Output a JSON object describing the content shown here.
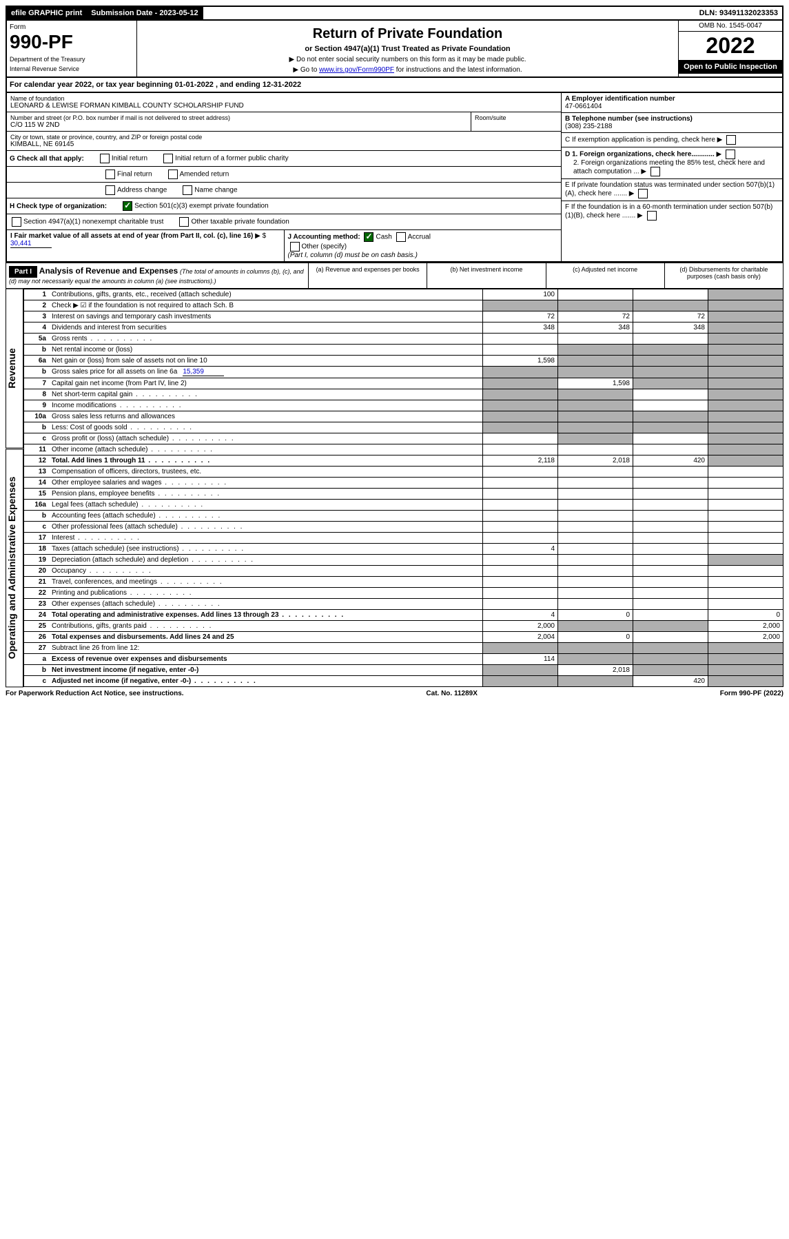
{
  "topbar": {
    "efile": "efile GRAPHIC print",
    "submission_label": "Submission Date - 2023-05-12",
    "dln_label": "DLN: 93491132023353"
  },
  "header": {
    "form_word": "Form",
    "form_number": "990-PF",
    "dept1": "Department of the Treasury",
    "dept2": "Internal Revenue Service",
    "title": "Return of Private Foundation",
    "subtitle": "or Section 4947(a)(1) Trust Treated as Private Foundation",
    "instr1": "▶ Do not enter social security numbers on this form as it may be made public.",
    "instr2_pre": "▶ Go to ",
    "instr2_link": "www.irs.gov/Form990PF",
    "instr2_post": " for instructions and the latest information.",
    "omb": "OMB No. 1545-0047",
    "year": "2022",
    "open": "Open to Public Inspection"
  },
  "calyear": {
    "text_pre": "For calendar year 2022, or tax year beginning ",
    "begin": "01-01-2022",
    "text_mid": " , and ending ",
    "end": "12-31-2022"
  },
  "info": {
    "name_lbl": "Name of foundation",
    "name_val": "LEONARD & LEWISE FORMAN KIMBALL COUNTY SCHOLARSHIP FUND",
    "addr_lbl": "Number and street (or P.O. box number if mail is not delivered to street address)",
    "addr_val": "C/O 115 W 2ND",
    "room_lbl": "Room/suite",
    "city_lbl": "City or town, state or province, country, and ZIP or foreign postal code",
    "city_val": "KIMBALL, NE  69145",
    "ein_lbl": "A Employer identification number",
    "ein_val": "47-0661404",
    "tel_lbl": "B Telephone number (see instructions)",
    "tel_val": "(308) 235-2188",
    "c_lbl": "C If exemption application is pending, check here",
    "d1_lbl": "D 1. Foreign organizations, check here............",
    "d2_lbl": "2. Foreign organizations meeting the 85% test, check here and attach computation ...",
    "e_lbl": "E  If private foundation status was terminated under section 507(b)(1)(A), check here .......",
    "f_lbl": "F  If the foundation is in a 60-month termination under section 507(b)(1)(B), check here .......",
    "g_lbl": "G Check all that apply:",
    "g_initial": "Initial return",
    "g_initial_former": "Initial return of a former public charity",
    "g_final": "Final return",
    "g_amended": "Amended return",
    "g_address": "Address change",
    "g_name": "Name change",
    "h_lbl": "H Check type of organization:",
    "h_501c3": "Section 501(c)(3) exempt private foundation",
    "h_4947": "Section 4947(a)(1) nonexempt charitable trust",
    "h_other_tax": "Other taxable private foundation",
    "i_lbl": "I Fair market value of all assets at end of year (from Part II, col. (c), line 16)",
    "i_val": "30,441",
    "j_lbl": "J Accounting method:",
    "j_cash": "Cash",
    "j_accrual": "Accrual",
    "j_other": "Other (specify)",
    "j_note": "(Part I, column (d) must be on cash basis.)"
  },
  "part1": {
    "part_label": "Part I",
    "title": "Analysis of Revenue and Expenses",
    "subtitle": "(The total of amounts in columns (b), (c), and (d) may not necessarily equal the amounts in column (a) (see instructions).)",
    "col_a": "(a) Revenue and expenses per books",
    "col_b": "(b) Net investment income",
    "col_c": "(c) Adjusted net income",
    "col_d": "(d) Disbursements for charitable purposes (cash basis only)"
  },
  "sidelabels": {
    "revenue": "Revenue",
    "expenses": "Operating and Administrative Expenses"
  },
  "rows": [
    {
      "n": "1",
      "label": "Contributions, gifts, grants, etc., received (attach schedule)",
      "a": "100",
      "b": "",
      "c": "",
      "d": "",
      "d_shaded": true
    },
    {
      "n": "2",
      "label": "Check ▶ ☑ if the foundation is not required to attach Sch. B",
      "a": "",
      "b": "",
      "c": "",
      "d": "",
      "all_shaded": true,
      "bold_not": true
    },
    {
      "n": "3",
      "label": "Interest on savings and temporary cash investments",
      "a": "72",
      "b": "72",
      "c": "72",
      "d": "",
      "d_shaded": true
    },
    {
      "n": "4",
      "label": "Dividends and interest from securities",
      "a": "348",
      "b": "348",
      "c": "348",
      "d": "",
      "d_shaded": true
    },
    {
      "n": "5a",
      "label": "Gross rents",
      "a": "",
      "b": "",
      "c": "",
      "d": "",
      "d_shaded": true,
      "dots": true
    },
    {
      "n": "b",
      "label": "Net rental income or (loss)",
      "a": "",
      "b": "",
      "c": "",
      "d": "",
      "bcd_shaded": true
    },
    {
      "n": "6a",
      "label": "Net gain or (loss) from sale of assets not on line 10",
      "a": "1,598",
      "b": "",
      "c": "",
      "d": "",
      "bcd_shaded": true
    },
    {
      "n": "b",
      "label": "Gross sales price for all assets on line 6a",
      "inline_val": "15,359",
      "a": "",
      "b": "",
      "c": "",
      "d": "",
      "all_shaded": true
    },
    {
      "n": "7",
      "label": "Capital gain net income (from Part IV, line 2)",
      "a": "",
      "b": "1,598",
      "c": "",
      "d": "",
      "a_shaded": true,
      "cd_shaded": true
    },
    {
      "n": "8",
      "label": "Net short-term capital gain",
      "a": "",
      "b": "",
      "c": "",
      "d": "",
      "ab_shaded": true,
      "d_shaded": true,
      "dots": true
    },
    {
      "n": "9",
      "label": "Income modifications",
      "a": "",
      "b": "",
      "c": "",
      "d": "",
      "ab_shaded": true,
      "d_shaded": true,
      "dots": true
    },
    {
      "n": "10a",
      "label": "Gross sales less returns and allowances",
      "a": "",
      "b": "",
      "c": "",
      "d": "",
      "all_shaded": true
    },
    {
      "n": "b",
      "label": "Less: Cost of goods sold",
      "a": "",
      "b": "",
      "c": "",
      "d": "",
      "all_shaded": true,
      "dots": true
    },
    {
      "n": "c",
      "label": "Gross profit or (loss) (attach schedule)",
      "a": "",
      "b": "",
      "c": "",
      "d": "",
      "b_shaded": true,
      "d_shaded": true,
      "dots": true
    },
    {
      "n": "11",
      "label": "Other income (attach schedule)",
      "a": "",
      "b": "",
      "c": "",
      "d": "",
      "d_shaded": true,
      "dots": true
    },
    {
      "n": "12",
      "label": "Total. Add lines 1 through 11",
      "a": "2,118",
      "b": "2,018",
      "c": "420",
      "d": "",
      "d_shaded": true,
      "bold": true,
      "dots": true
    },
    {
      "n": "13",
      "label": "Compensation of officers, directors, trustees, etc.",
      "a": "",
      "b": "",
      "c": "",
      "d": ""
    },
    {
      "n": "14",
      "label": "Other employee salaries and wages",
      "a": "",
      "b": "",
      "c": "",
      "d": "",
      "dots": true
    },
    {
      "n": "15",
      "label": "Pension plans, employee benefits",
      "a": "",
      "b": "",
      "c": "",
      "d": "",
      "dots": true
    },
    {
      "n": "16a",
      "label": "Legal fees (attach schedule)",
      "a": "",
      "b": "",
      "c": "",
      "d": "",
      "dots": true
    },
    {
      "n": "b",
      "label": "Accounting fees (attach schedule)",
      "a": "",
      "b": "",
      "c": "",
      "d": "",
      "dots": true
    },
    {
      "n": "c",
      "label": "Other professional fees (attach schedule)",
      "a": "",
      "b": "",
      "c": "",
      "d": "",
      "dots": true
    },
    {
      "n": "17",
      "label": "Interest",
      "a": "",
      "b": "",
      "c": "",
      "d": "",
      "dots": true
    },
    {
      "n": "18",
      "label": "Taxes (attach schedule) (see instructions)",
      "a": "4",
      "b": "",
      "c": "",
      "d": "",
      "dots": true
    },
    {
      "n": "19",
      "label": "Depreciation (attach schedule) and depletion",
      "a": "",
      "b": "",
      "c": "",
      "d": "",
      "d_shaded": true,
      "dots": true
    },
    {
      "n": "20",
      "label": "Occupancy",
      "a": "",
      "b": "",
      "c": "",
      "d": "",
      "dots": true
    },
    {
      "n": "21",
      "label": "Travel, conferences, and meetings",
      "a": "",
      "b": "",
      "c": "",
      "d": "",
      "dots": true
    },
    {
      "n": "22",
      "label": "Printing and publications",
      "a": "",
      "b": "",
      "c": "",
      "d": "",
      "dots": true
    },
    {
      "n": "23",
      "label": "Other expenses (attach schedule)",
      "a": "",
      "b": "",
      "c": "",
      "d": "",
      "dots": true
    },
    {
      "n": "24",
      "label": "Total operating and administrative expenses. Add lines 13 through 23",
      "a": "4",
      "b": "0",
      "c": "",
      "d": "0",
      "bold": true,
      "dots": true
    },
    {
      "n": "25",
      "label": "Contributions, gifts, grants paid",
      "a": "2,000",
      "b": "",
      "c": "",
      "d": "2,000",
      "bc_shaded": true,
      "dots": true
    },
    {
      "n": "26",
      "label": "Total expenses and disbursements. Add lines 24 and 25",
      "a": "2,004",
      "b": "0",
      "c": "",
      "d": "2,000",
      "bold": true
    },
    {
      "n": "27",
      "label": "Subtract line 26 from line 12:",
      "a": "",
      "b": "",
      "c": "",
      "d": "",
      "all_shaded": true
    },
    {
      "n": "a",
      "label": "Excess of revenue over expenses and disbursements",
      "a": "114",
      "b": "",
      "c": "",
      "d": "",
      "bcd_shaded": true,
      "bold": true
    },
    {
      "n": "b",
      "label": "Net investment income (if negative, enter -0-)",
      "a": "",
      "b": "2,018",
      "c": "",
      "d": "",
      "a_shaded": true,
      "cd_shaded": true,
      "bold": true
    },
    {
      "n": "c",
      "label": "Adjusted net income (if negative, enter -0-)",
      "a": "",
      "b": "",
      "c": "420",
      "d": "",
      "ab_shaded": true,
      "d_shaded": true,
      "bold": true,
      "dots": true
    }
  ],
  "footer": {
    "left": "For Paperwork Reduction Act Notice, see instructions.",
    "cat": "Cat. No. 11289X",
    "right": "Form 990-PF (2022)"
  }
}
